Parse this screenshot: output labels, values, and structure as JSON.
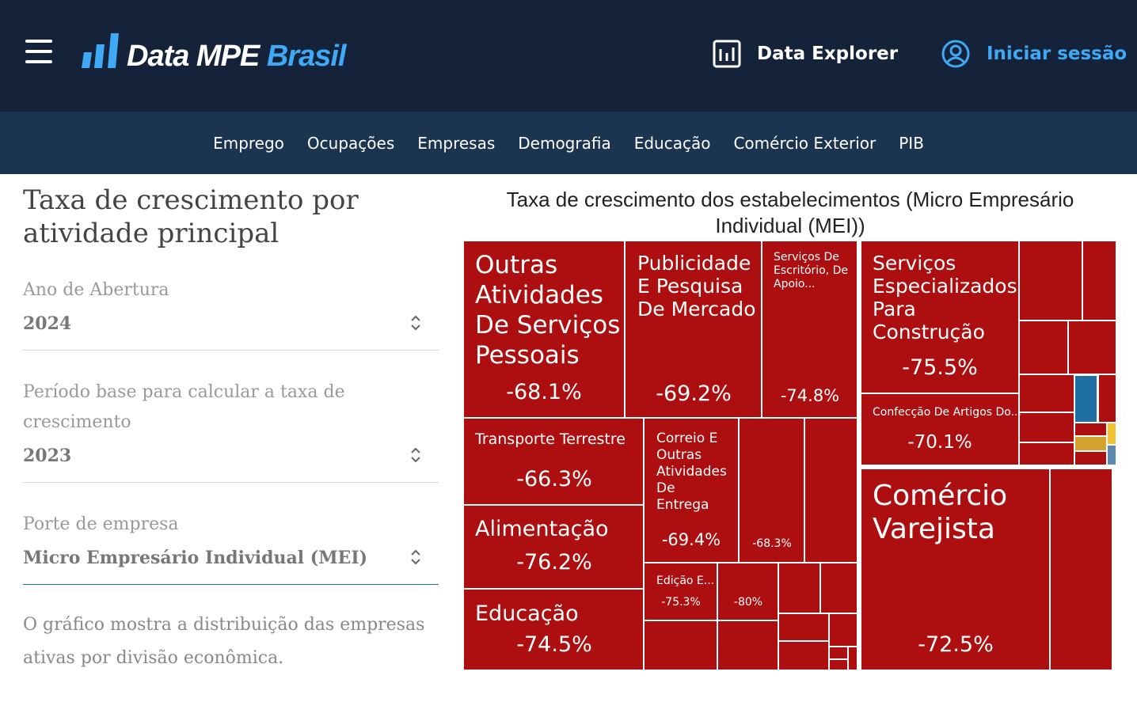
{
  "header": {
    "logo_text": "Data MPE",
    "logo_brasil": "Brasil",
    "data_explorer": "Data Explorer",
    "login": "Iniciar sessão"
  },
  "subnav": [
    "Emprego",
    "Ocupações",
    "Empresas",
    "Demografia",
    "Educação",
    "Comércio Exterior",
    "PIB"
  ],
  "filters": {
    "title": "Taxa de crescimento por atividade principal",
    "year_label": "Ano de Abertura",
    "year_value": "2024",
    "base_label": "Período base para calcular a taxa de crescimento",
    "base_value": "2023",
    "size_label": "Porte de empresa",
    "size_value": "Micro Empresário Individual (MEI)",
    "description": "O gráfico mostra a distribuição das empresas ativas por divisão econômica."
  },
  "colors": {
    "negative": "#ad0f10",
    "blue": "#1f6fa5",
    "gold": "#d4a22e",
    "yellow": "#f1c232",
    "steel": "#5b8ab1"
  },
  "chart_data": {
    "type": "treemap",
    "title": "Taxa de crescimento dos estabelecimentos (Micro Empresário Individual (MEI))",
    "items": [
      {
        "label": "Outras Atividades De Serviços Pessoais",
        "value": "-68.1%"
      },
      {
        "label": "Publicidade E Pesquisa De Mercado",
        "value": "-69.2%"
      },
      {
        "label": "Serviços De Escritório, De Apoio...",
        "value": "-74.8%"
      },
      {
        "label": "Serviços Especializados Para Construção",
        "value": "-75.5%"
      },
      {
        "label": "Confecção De Artigos Do...",
        "value": "-70.1%"
      },
      {
        "label": "Transporte Terrestre",
        "value": "-66.3%"
      },
      {
        "label": "Correio E Outras Atividades De Entrega",
        "value": "-69.4%"
      },
      {
        "label": "",
        "value": "-68.3%"
      },
      {
        "label": "Alimentação",
        "value": "-76.2%"
      },
      {
        "label": "Educação",
        "value": "-74.5%"
      },
      {
        "label": "Edição E...",
        "value": "-75.3%"
      },
      {
        "label": "",
        "value": "-80%"
      },
      {
        "label": "Comércio Varejista",
        "value": "-72.5%"
      }
    ]
  }
}
